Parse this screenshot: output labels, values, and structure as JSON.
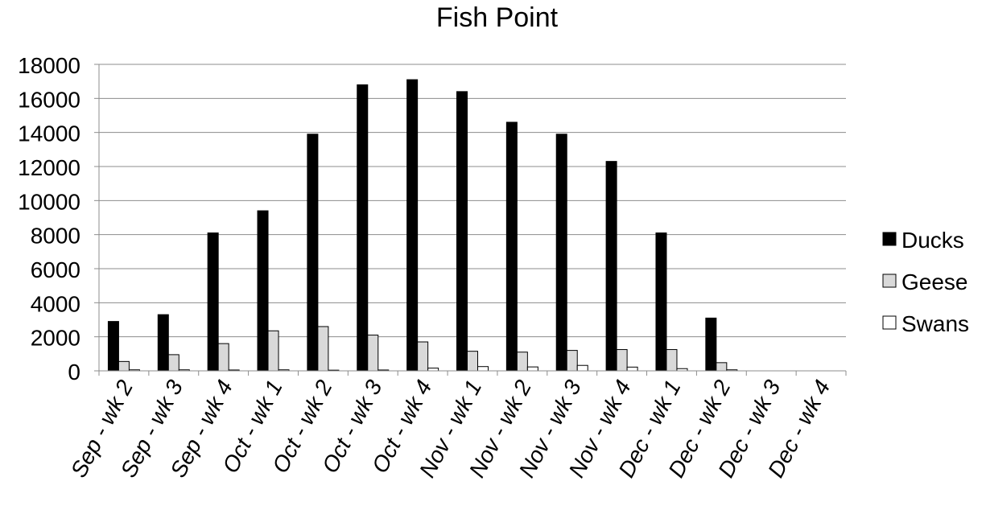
{
  "chart_data": {
    "type": "bar",
    "title": "Fish Point",
    "xlabel": "",
    "ylabel": "",
    "ylim": [
      0,
      18000
    ],
    "yticks": [
      0,
      2000,
      4000,
      6000,
      8000,
      10000,
      12000,
      14000,
      16000,
      18000
    ],
    "grid": true,
    "legend_position": "right",
    "categories": [
      "Sep - wk 2",
      "Sep - wk 3",
      "Sep - wk 4",
      "Oct - wk 1",
      "Oct - wk 2",
      "Oct - wk 3",
      "Oct - wk 4",
      "Nov - wk 1",
      "Nov - wk 2",
      "Nov - wk 3",
      "Nov - wk 4",
      "Dec - wk 1",
      "Dec - wk 2",
      "Dec - wk 3",
      "Dec - wk 4"
    ],
    "series": [
      {
        "name": "Ducks",
        "color": "#000000",
        "values": [
          2900,
          3300,
          8100,
          9400,
          13900,
          16800,
          17100,
          16400,
          14600,
          13900,
          12300,
          8100,
          3100,
          0,
          0
        ]
      },
      {
        "name": "Geese",
        "color": "#d9d9d9",
        "values": [
          550,
          950,
          1600,
          2350,
          2600,
          2100,
          1700,
          1150,
          1100,
          1200,
          1250,
          1250,
          480,
          0,
          0
        ]
      },
      {
        "name": "Swans",
        "color": "#ffffff",
        "values": [
          60,
          60,
          50,
          60,
          40,
          50,
          160,
          250,
          230,
          320,
          220,
          130,
          60,
          0,
          0
        ]
      }
    ]
  }
}
